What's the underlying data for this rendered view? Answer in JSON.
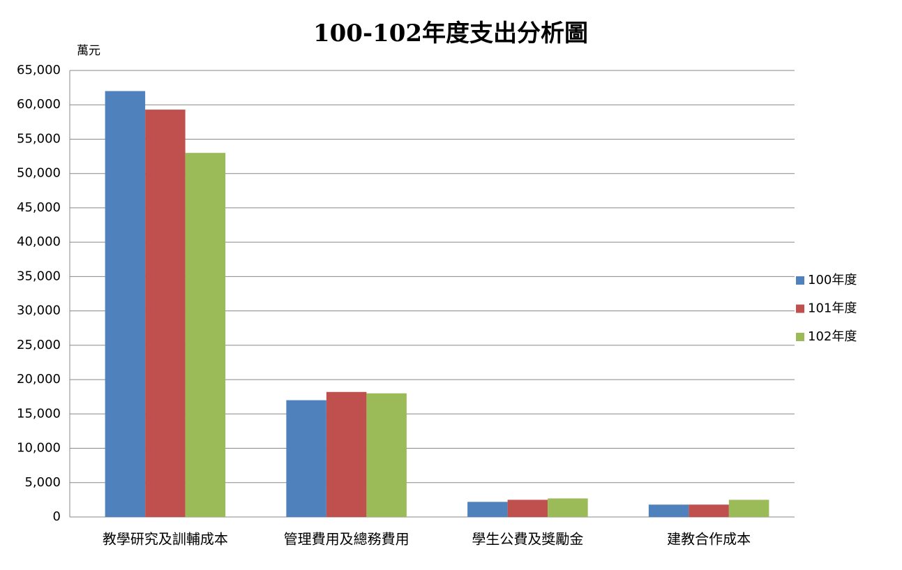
{
  "chart_data": {
    "type": "bar",
    "title": "100-102年度支出分析圖",
    "y_label": "萬元",
    "categories": [
      "教學研究及訓輔成本",
      "管理費用及總務費用",
      "學生公費及獎勵金",
      "建教合作成本"
    ],
    "series": [
      {
        "name": "100年度",
        "color": "#4f81bd",
        "values": [
          62000,
          17000,
          2200,
          1800
        ]
      },
      {
        "name": "101年度",
        "color": "#c0504d",
        "values": [
          59300,
          18200,
          2500,
          1800
        ]
      },
      {
        "name": "102年度",
        "color": "#9bbb59",
        "values": [
          53000,
          18000,
          2700,
          2500
        ]
      }
    ],
    "ylim": [
      0,
      65000
    ],
    "yticks": [
      0,
      {
        "value": 5000,
        "label": "5,000"
      },
      {
        "value": 10000,
        "label": "10,000"
      },
      {
        "value": 15000,
        "label": "15,000"
      },
      {
        "value": 20000,
        "label": "20,000"
      },
      {
        "value": 25000,
        "label": "25,000"
      },
      {
        "value": 30000,
        "label": "30,000"
      },
      {
        "value": 35000,
        "label": "35,000"
      },
      {
        "value": 40000,
        "label": "40,000"
      },
      {
        "value": 45000,
        "label": "45,000"
      },
      {
        "value": 50000,
        "label": "50,000"
      },
      {
        "value": 55000,
        "label": "55,000"
      },
      {
        "value": 60000,
        "label": "60,000"
      },
      {
        "value": 65000,
        "label": "65,000"
      }
    ],
    "grid": true,
    "legend": "right"
  }
}
